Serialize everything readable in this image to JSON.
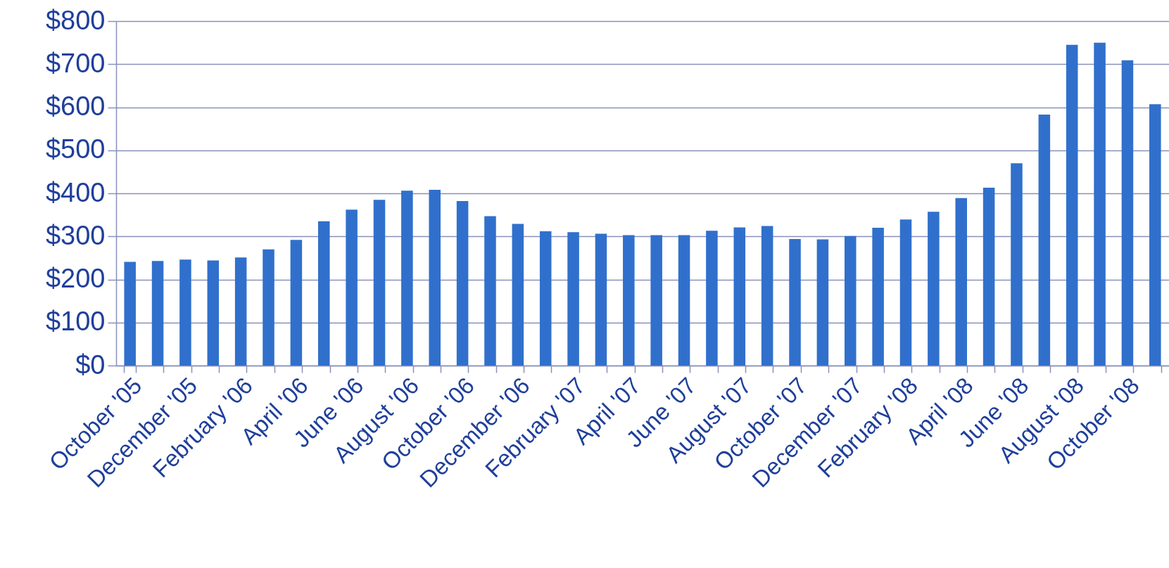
{
  "chart_data": {
    "type": "bar",
    "categories": [
      "October '05",
      null,
      "December '05",
      null,
      "February '06",
      null,
      "April '06",
      null,
      "June '06",
      null,
      "August '06",
      null,
      "October '06",
      null,
      "December '06",
      null,
      "February '07",
      null,
      "April '07",
      null,
      "June '07",
      null,
      "August '07",
      null,
      "October '07",
      null,
      "December '07",
      null,
      "February '08",
      null,
      "April '08",
      null,
      "June '08",
      null,
      "August '08",
      null,
      "October '08",
      null
    ],
    "values": [
      241,
      243,
      246,
      244,
      251,
      270,
      292,
      335,
      362,
      385,
      406,
      408,
      382,
      347,
      329,
      312,
      310,
      306,
      303,
      303,
      303,
      313,
      321,
      324,
      294,
      293,
      301,
      320,
      339,
      357,
      389,
      413,
      470,
      583,
      745,
      750,
      709,
      607
    ],
    "color": "#3070cc",
    "ylim": [
      0,
      800
    ],
    "yticks": [
      {
        "value": 0,
        "label": "$0"
      },
      {
        "value": 100,
        "label": "$100"
      },
      {
        "value": 200,
        "label": "$200"
      },
      {
        "value": 300,
        "label": "$300"
      },
      {
        "value": 400,
        "label": "$400"
      },
      {
        "value": 500,
        "label": "$500"
      },
      {
        "value": 600,
        "label": "$600"
      },
      {
        "value": 700,
        "label": "$700"
      },
      {
        "value": 800,
        "label": "$800"
      }
    ],
    "grid": "y"
  }
}
